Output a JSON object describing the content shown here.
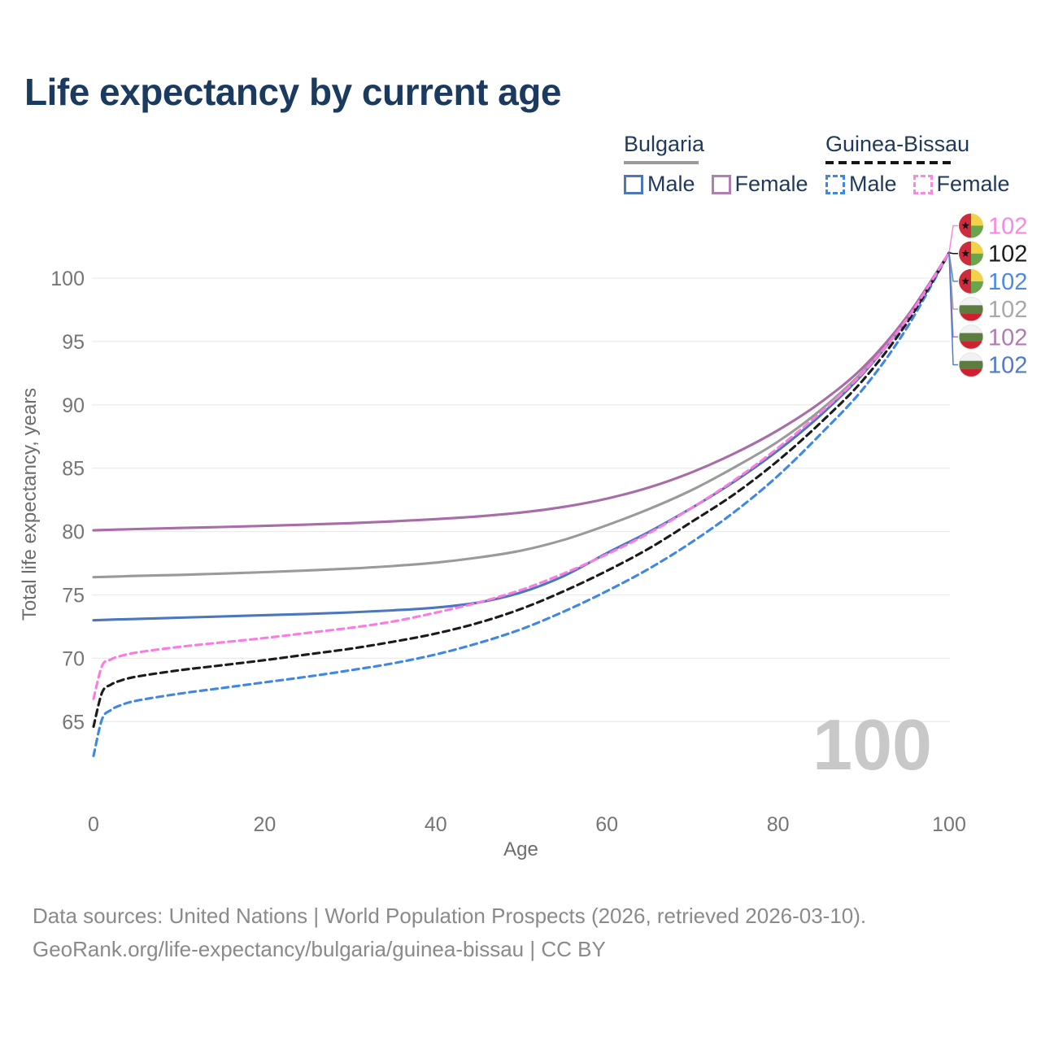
{
  "title": "Life expectancy by current age",
  "legend": {
    "groups": [
      {
        "name": "Bulgaria",
        "line_style": "solid",
        "underline_color": "#9a9a9a",
        "items": [
          {
            "label": "Male",
            "color": "#4a77bd"
          },
          {
            "label": "Female",
            "color": "#b07fad"
          }
        ]
      },
      {
        "name": "Guinea-Bissau",
        "line_style": "dashed",
        "underline_color": "#161616",
        "items": [
          {
            "label": "Male",
            "color": "#3f87e5"
          },
          {
            "label": "Female",
            "color": "#fb86e3"
          }
        ]
      }
    ]
  },
  "footer": {
    "line1": "Data sources: United Nations | World Population Prospects (2026, retrieved 2026-03-10).",
    "line2": "GeoRank.org/life-expectancy/bulgaria/guinea-bissau | CC BY"
  },
  "flags": {
    "bulgaria": {
      "white": "#f2f2f2",
      "green": "#5d7c3f",
      "red": "#d01f2e"
    },
    "guinea_bissau": {
      "red": "#ce2b3d",
      "yellow": "#f3d24b",
      "green": "#6aa44b",
      "star": "#141414"
    }
  },
  "chart_data": {
    "type": "line",
    "title": "Life expectancy by current age",
    "xlabel": "Age",
    "ylabel": "Total life expectancy, years",
    "xlim": [
      0,
      100
    ],
    "ylim": [
      62,
      102.5
    ],
    "x_ticks": [
      0,
      20,
      40,
      60,
      80,
      100
    ],
    "y_ticks": [
      65,
      70,
      75,
      80,
      85,
      90,
      95,
      100
    ],
    "grid": "horizontal",
    "legend_position": "top-right",
    "watermark": "100",
    "ages": [
      0,
      1,
      2,
      3,
      5,
      10,
      15,
      20,
      25,
      30,
      35,
      40,
      45,
      50,
      55,
      60,
      65,
      70,
      75,
      80,
      85,
      90,
      95,
      100
    ],
    "series": [
      {
        "id": "bulgaria-male",
        "name": "Bulgaria Male",
        "country": "Bulgaria",
        "sex": "male",
        "style": "solid",
        "color": "#4a77bd",
        "values": [
          73.0,
          73.02,
          73.05,
          73.07,
          73.1,
          73.2,
          73.3,
          73.4,
          73.5,
          73.62,
          73.78,
          74.0,
          74.4,
          75.2,
          76.5,
          78.3,
          80.0,
          81.9,
          84.0,
          86.4,
          89.2,
          92.5,
          96.7,
          102
        ]
      },
      {
        "id": "bulgaria-all",
        "name": "Bulgaria",
        "country": "Bulgaria",
        "sex": "all",
        "style": "solid",
        "color": "#9a9a9a",
        "values": [
          76.4,
          76.42,
          76.44,
          76.46,
          76.5,
          76.58,
          76.68,
          76.8,
          76.93,
          77.08,
          77.28,
          77.55,
          77.95,
          78.5,
          79.35,
          80.5,
          81.8,
          83.3,
          85.1,
          87.1,
          89.6,
          92.7,
          96.8,
          102
        ]
      },
      {
        "id": "bulgaria-female",
        "name": "Bulgaria Female",
        "country": "Bulgaria",
        "sex": "female",
        "style": "solid",
        "color": "#a86ca6",
        "values": [
          80.1,
          80.12,
          80.14,
          80.16,
          80.2,
          80.28,
          80.36,
          80.45,
          80.55,
          80.66,
          80.8,
          80.98,
          81.2,
          81.5,
          81.95,
          82.6,
          83.5,
          84.7,
          86.2,
          88.0,
          90.2,
          93.0,
          96.9,
          102
        ]
      },
      {
        "id": "guinea-bissau-male",
        "name": "Guinea-Bissau Male",
        "country": "Guinea-Bissau",
        "sex": "male",
        "style": "dashed",
        "color": "#3f87e5",
        "values": [
          62.3,
          65.2,
          65.9,
          66.25,
          66.65,
          67.2,
          67.65,
          68.1,
          68.55,
          69.05,
          69.6,
          70.3,
          71.2,
          72.3,
          73.7,
          75.3,
          77.1,
          79.2,
          81.6,
          84.4,
          87.7,
          91.3,
          96.0,
          102
        ]
      },
      {
        "id": "guinea-bissau-all",
        "name": "Guinea-Bissau",
        "country": "Guinea-Bissau",
        "sex": "all",
        "style": "dashed",
        "color": "#1b1b1b",
        "values": [
          64.6,
          67.3,
          67.9,
          68.2,
          68.55,
          69.05,
          69.45,
          69.85,
          70.3,
          70.75,
          71.3,
          71.95,
          72.8,
          73.9,
          75.3,
          76.9,
          78.7,
          80.8,
          83.0,
          85.6,
          88.6,
          92.0,
          96.4,
          102
        ]
      },
      {
        "id": "guinea-bissau-female",
        "name": "Guinea-Bissau Female",
        "country": "Guinea-Bissau",
        "sex": "female",
        "style": "dashed",
        "color": "#fb7ce1",
        "values": [
          66.8,
          69.4,
          69.9,
          70.15,
          70.45,
          70.9,
          71.25,
          71.6,
          72.0,
          72.4,
          72.9,
          73.6,
          74.4,
          75.4,
          76.7,
          78.2,
          79.9,
          81.9,
          84.1,
          86.6,
          89.4,
          92.6,
          96.7,
          102
        ]
      }
    ],
    "end_labels": [
      {
        "series": "guinea-bissau-female",
        "text": "102",
        "flag": "guinea_bissau",
        "color": "#fb86e3"
      },
      {
        "series": "guinea-bissau-all",
        "text": "102",
        "flag": "guinea_bissau",
        "color": "#1a1a1a"
      },
      {
        "series": "guinea-bissau-male",
        "text": "102",
        "flag": "guinea_bissau",
        "color": "#4a89e8"
      },
      {
        "series": "bulgaria-all",
        "text": "102",
        "flag": "bulgaria",
        "color": "#a8a8a8"
      },
      {
        "series": "bulgaria-female",
        "text": "102",
        "flag": "bulgaria",
        "color": "#b27ab2"
      },
      {
        "series": "bulgaria-male",
        "text": "102",
        "flag": "bulgaria",
        "color": "#4f7ac7"
      }
    ]
  }
}
